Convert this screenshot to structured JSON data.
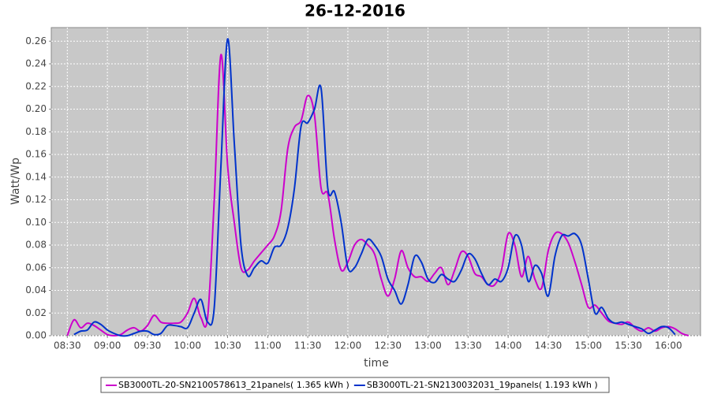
{
  "chart_data": {
    "type": "line",
    "title": "26-12-2016",
    "x_label": "time",
    "y_label": "Watt/Wp",
    "x": [
      "08:30",
      "08:35",
      "08:40",
      "08:45",
      "08:50",
      "08:55",
      "09:00",
      "09:05",
      "09:10",
      "09:15",
      "09:20",
      "09:25",
      "09:30",
      "09:35",
      "09:40",
      "09:45",
      "09:50",
      "09:55",
      "10:00",
      "10:05",
      "10:10",
      "10:15",
      "10:20",
      "10:25",
      "10:30",
      "10:35",
      "10:40",
      "10:45",
      "10:50",
      "10:55",
      "11:00",
      "11:05",
      "11:10",
      "11:15",
      "11:20",
      "11:25",
      "11:30",
      "11:35",
      "11:40",
      "11:45",
      "11:50",
      "11:55",
      "12:00",
      "12:05",
      "12:10",
      "12:15",
      "12:20",
      "12:25",
      "12:30",
      "12:35",
      "12:40",
      "12:45",
      "12:50",
      "12:55",
      "13:00",
      "13:05",
      "13:10",
      "13:15",
      "13:20",
      "13:25",
      "13:30",
      "13:35",
      "13:40",
      "13:45",
      "13:50",
      "13:55",
      "14:00",
      "14:05",
      "14:10",
      "14:15",
      "14:20",
      "14:25",
      "14:30",
      "14:35",
      "14:40",
      "14:45",
      "14:50",
      "14:55",
      "15:00",
      "15:05",
      "15:10",
      "15:15",
      "15:20",
      "15:25",
      "15:30",
      "15:35",
      "15:40",
      "15:45",
      "15:50",
      "15:55",
      "16:00",
      "16:05",
      "16:10",
      "16:15"
    ],
    "series": [
      {
        "name": "SB3000TL-20-SN2100578613_21panels( 1.365 kWh )",
        "color": "#cc00cc",
        "values": [
          0.0,
          0.014,
          0.007,
          0.011,
          0.009,
          0.005,
          0.001,
          0.0,
          0.001,
          0.005,
          0.007,
          0.004,
          0.009,
          0.018,
          0.012,
          0.011,
          0.011,
          0.012,
          0.02,
          0.033,
          0.016,
          0.016,
          0.12,
          0.248,
          0.15,
          0.1,
          0.06,
          0.058,
          0.066,
          0.073,
          0.08,
          0.088,
          0.11,
          0.165,
          0.184,
          0.19,
          0.212,
          0.195,
          0.13,
          0.125,
          0.085,
          0.058,
          0.065,
          0.08,
          0.085,
          0.08,
          0.072,
          0.05,
          0.035,
          0.05,
          0.075,
          0.06,
          0.052,
          0.052,
          0.048,
          0.055,
          0.06,
          0.045,
          0.058,
          0.074,
          0.07,
          0.055,
          0.052,
          0.045,
          0.045,
          0.058,
          0.09,
          0.08,
          0.052,
          0.07,
          0.05,
          0.042,
          0.075,
          0.09,
          0.09,
          0.082,
          0.065,
          0.045,
          0.025,
          0.027,
          0.02,
          0.013,
          0.011,
          0.01,
          0.012,
          0.007,
          0.004,
          0.007,
          0.004,
          0.007,
          0.008,
          0.006,
          0.002,
          0.0
        ]
      },
      {
        "name": "SB3000TL-21-SN2130032031_19panels( 1.193 kWh )",
        "color": "#0033cc",
        "values": [
          null,
          0.001,
          0.004,
          0.005,
          0.012,
          0.01,
          0.005,
          0.002,
          0.0,
          0.0,
          0.002,
          0.004,
          0.004,
          0.001,
          0.002,
          0.009,
          0.009,
          0.008,
          0.007,
          0.02,
          0.032,
          0.012,
          0.025,
          0.15,
          0.262,
          0.17,
          0.08,
          0.053,
          0.06,
          0.066,
          0.064,
          0.078,
          0.08,
          0.095,
          0.13,
          0.185,
          0.188,
          0.2,
          0.218,
          0.13,
          0.127,
          0.1,
          0.06,
          0.06,
          0.072,
          0.085,
          0.08,
          0.07,
          0.05,
          0.04,
          0.028,
          0.045,
          0.07,
          0.065,
          0.05,
          0.047,
          0.054,
          0.05,
          0.048,
          0.058,
          0.072,
          0.068,
          0.055,
          0.045,
          0.05,
          0.048,
          0.06,
          0.088,
          0.08,
          0.048,
          0.062,
          0.055,
          0.035,
          0.07,
          0.088,
          0.088,
          0.09,
          0.08,
          0.05,
          0.02,
          0.025,
          0.015,
          0.011,
          0.012,
          0.01,
          0.008,
          0.006,
          0.002,
          0.005,
          0.008,
          0.007,
          0.001,
          null,
          null
        ]
      }
    ],
    "xlim": [
      "08:18",
      "16:24"
    ],
    "xticks": [
      "08:30",
      "09:00",
      "09:30",
      "10:00",
      "10:30",
      "11:00",
      "11:30",
      "12:00",
      "12:30",
      "13:00",
      "13:30",
      "14:00",
      "14:30",
      "15:00",
      "15:30",
      "16:00"
    ],
    "ylim": [
      0,
      0.272
    ],
    "yticks": [
      {
        "value": 0,
        "label": "0.00"
      },
      {
        "value": 0.02,
        "label": "0.02"
      },
      {
        "value": 0.04,
        "label": "0.04"
      },
      {
        "value": 0.06,
        "label": "0.06"
      },
      {
        "value": 0.08,
        "label": "0.08"
      },
      {
        "value": 0.1,
        "label": "0.10"
      },
      {
        "value": 0.12,
        "label": "0.12"
      },
      {
        "value": 0.14,
        "label": "0.14"
      },
      {
        "value": 0.16,
        "label": "0.16"
      },
      {
        "value": 0.18,
        "label": "0.18"
      },
      {
        "value": 0.2,
        "label": "0.20"
      },
      {
        "value": 0.22,
        "label": "0.22"
      },
      {
        "value": 0.24,
        "label": "0.24"
      },
      {
        "value": 0.26,
        "label": "0.26"
      }
    ],
    "grid": true
  }
}
